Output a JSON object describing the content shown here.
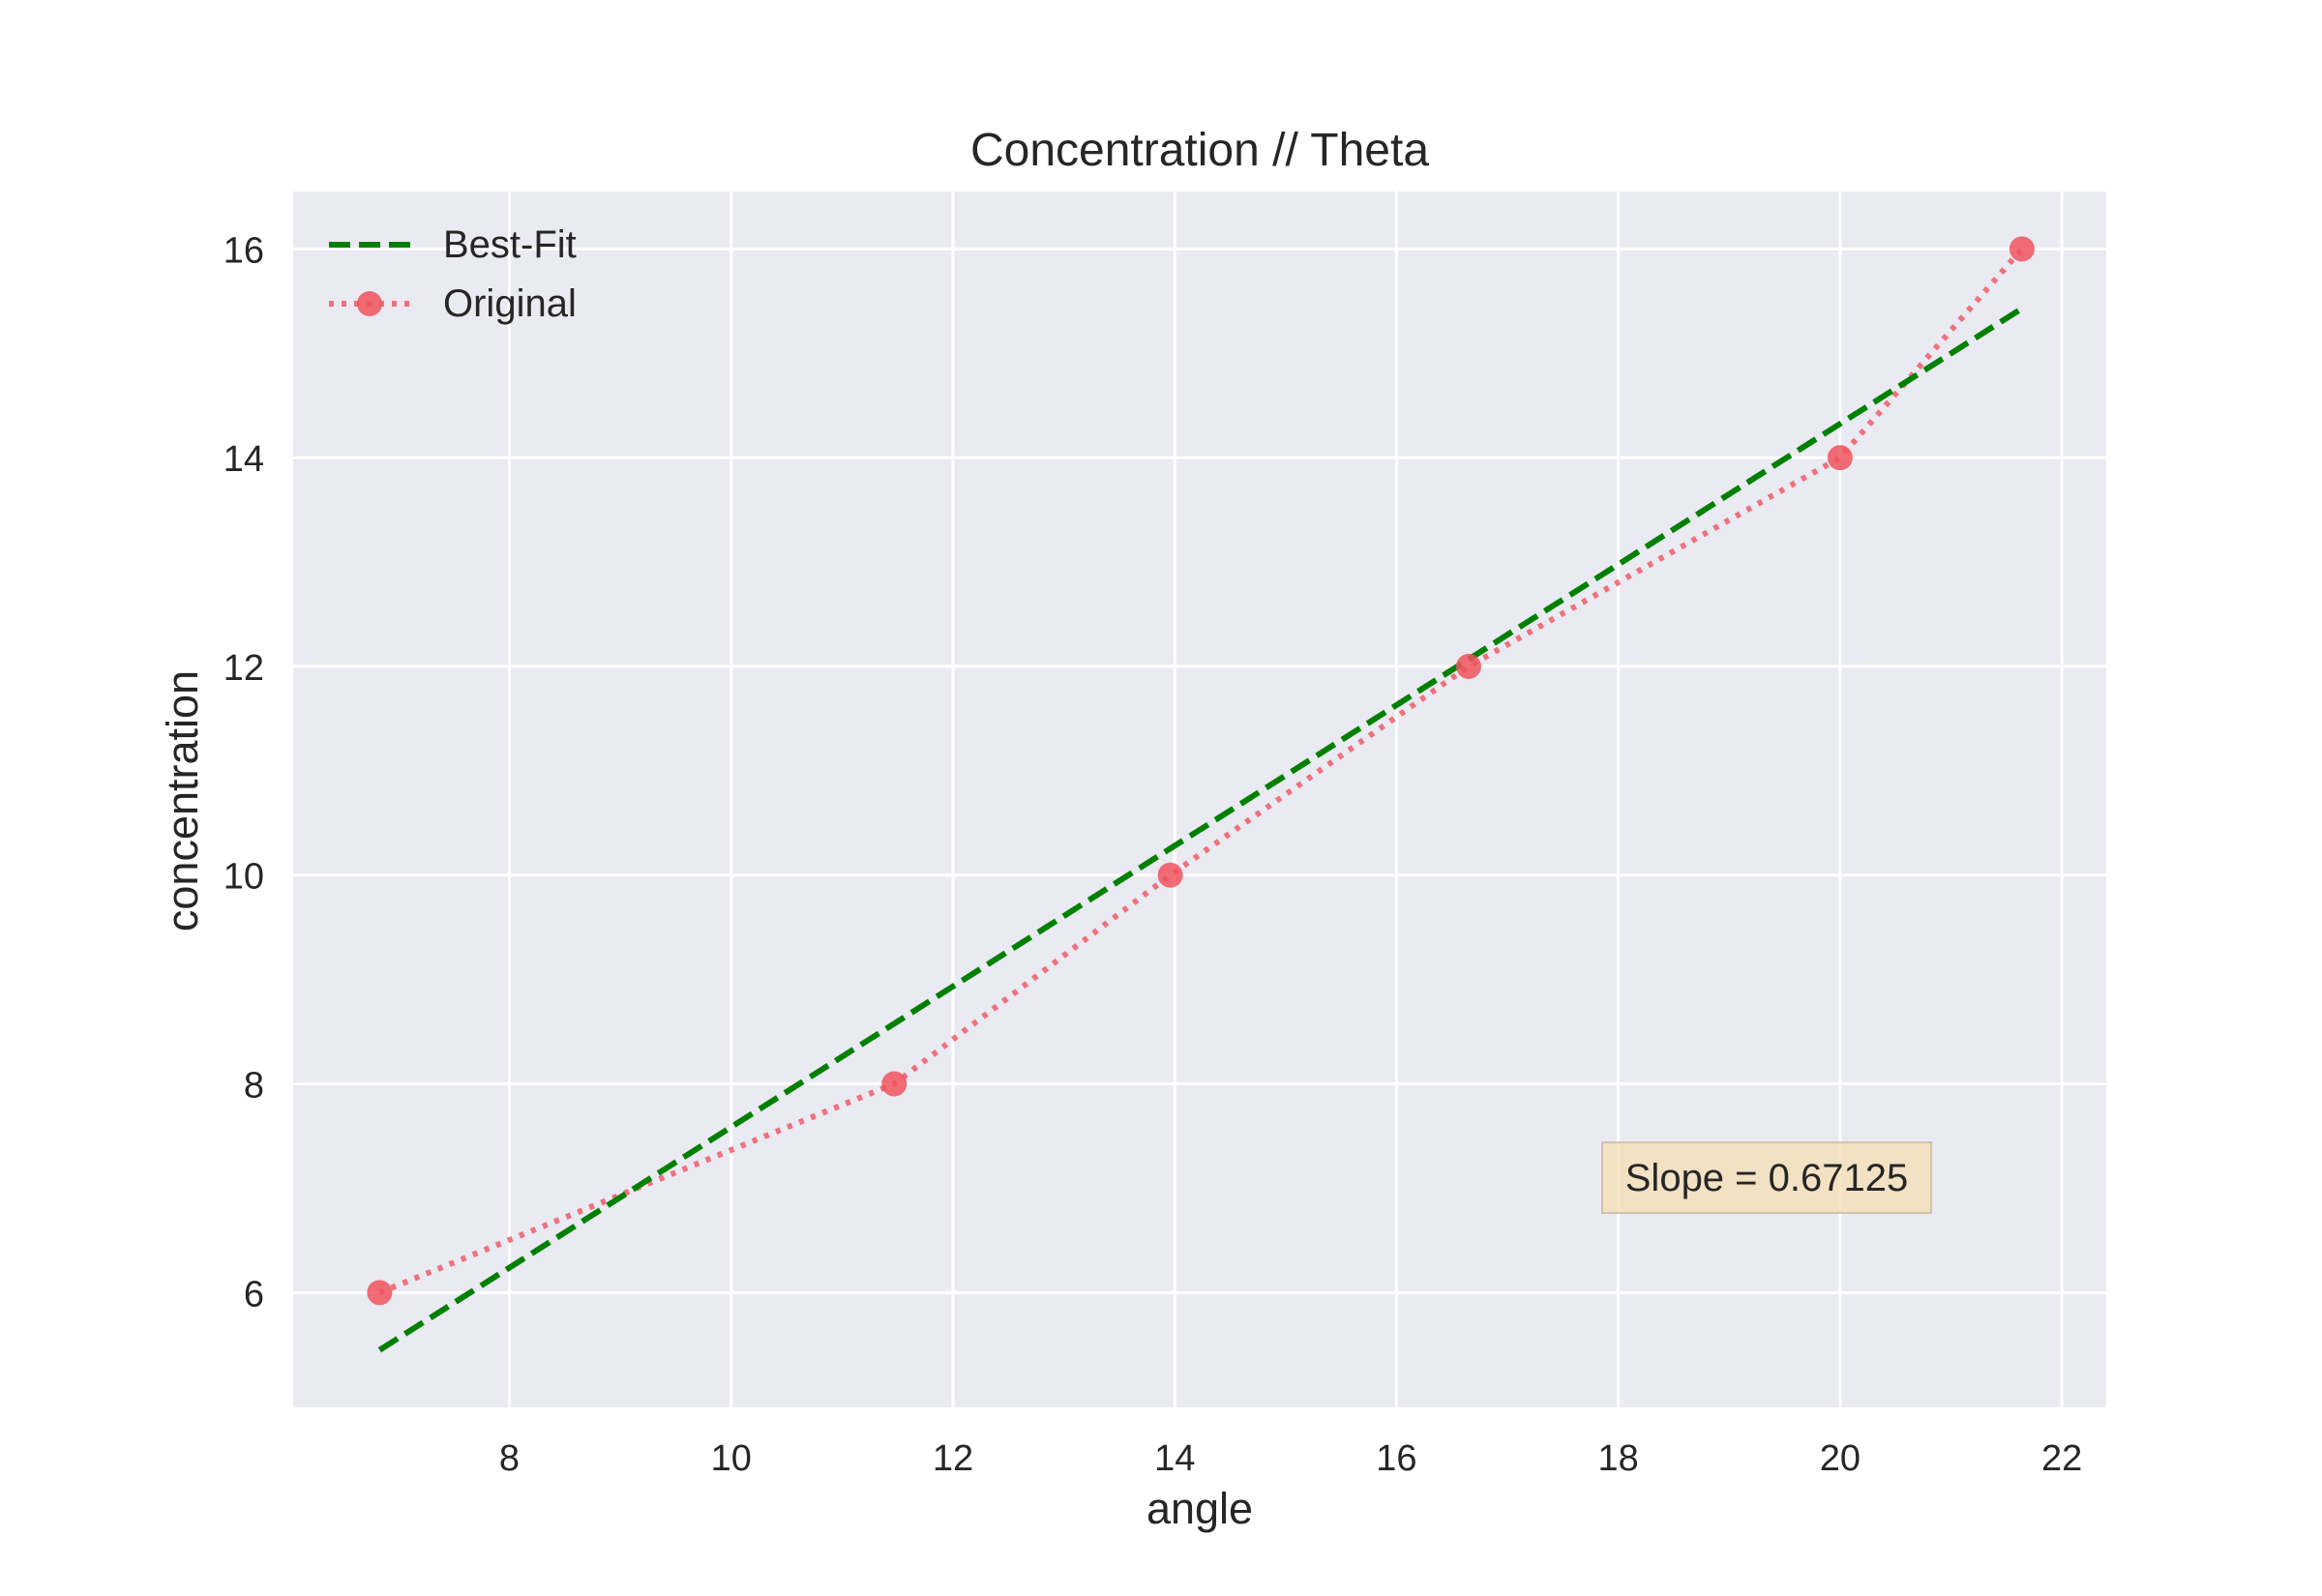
{
  "chart_data": {
    "type": "line",
    "title": "Concentration // Theta",
    "xlabel": "angle",
    "ylabel": "concentration",
    "xlim": [
      6.05,
      22.4
    ],
    "ylim": [
      4.9,
      16.55
    ],
    "x_ticks": [
      8,
      10,
      12,
      14,
      16,
      18,
      20,
      22
    ],
    "y_ticks": [
      6,
      8,
      10,
      12,
      14,
      16
    ],
    "grid": true,
    "legend_position": "top-left",
    "series": [
      {
        "name": "Best-Fit",
        "style": "dashed",
        "color": "#008000",
        "x": [
          6.83,
          21.64
        ],
        "y": [
          5.45,
          15.43
        ]
      },
      {
        "name": "Original",
        "style": "dotted-markers",
        "color": "#f0535d",
        "x": [
          6.83,
          11.47,
          13.96,
          16.65,
          20.0,
          21.64
        ],
        "y": [
          6,
          8,
          10,
          12,
          14,
          16
        ]
      }
    ],
    "annotations": [
      {
        "text": "Slope = 0.67125",
        "x": 19.35,
        "y": 7.1,
        "color": "#f5deb3"
      }
    ]
  }
}
